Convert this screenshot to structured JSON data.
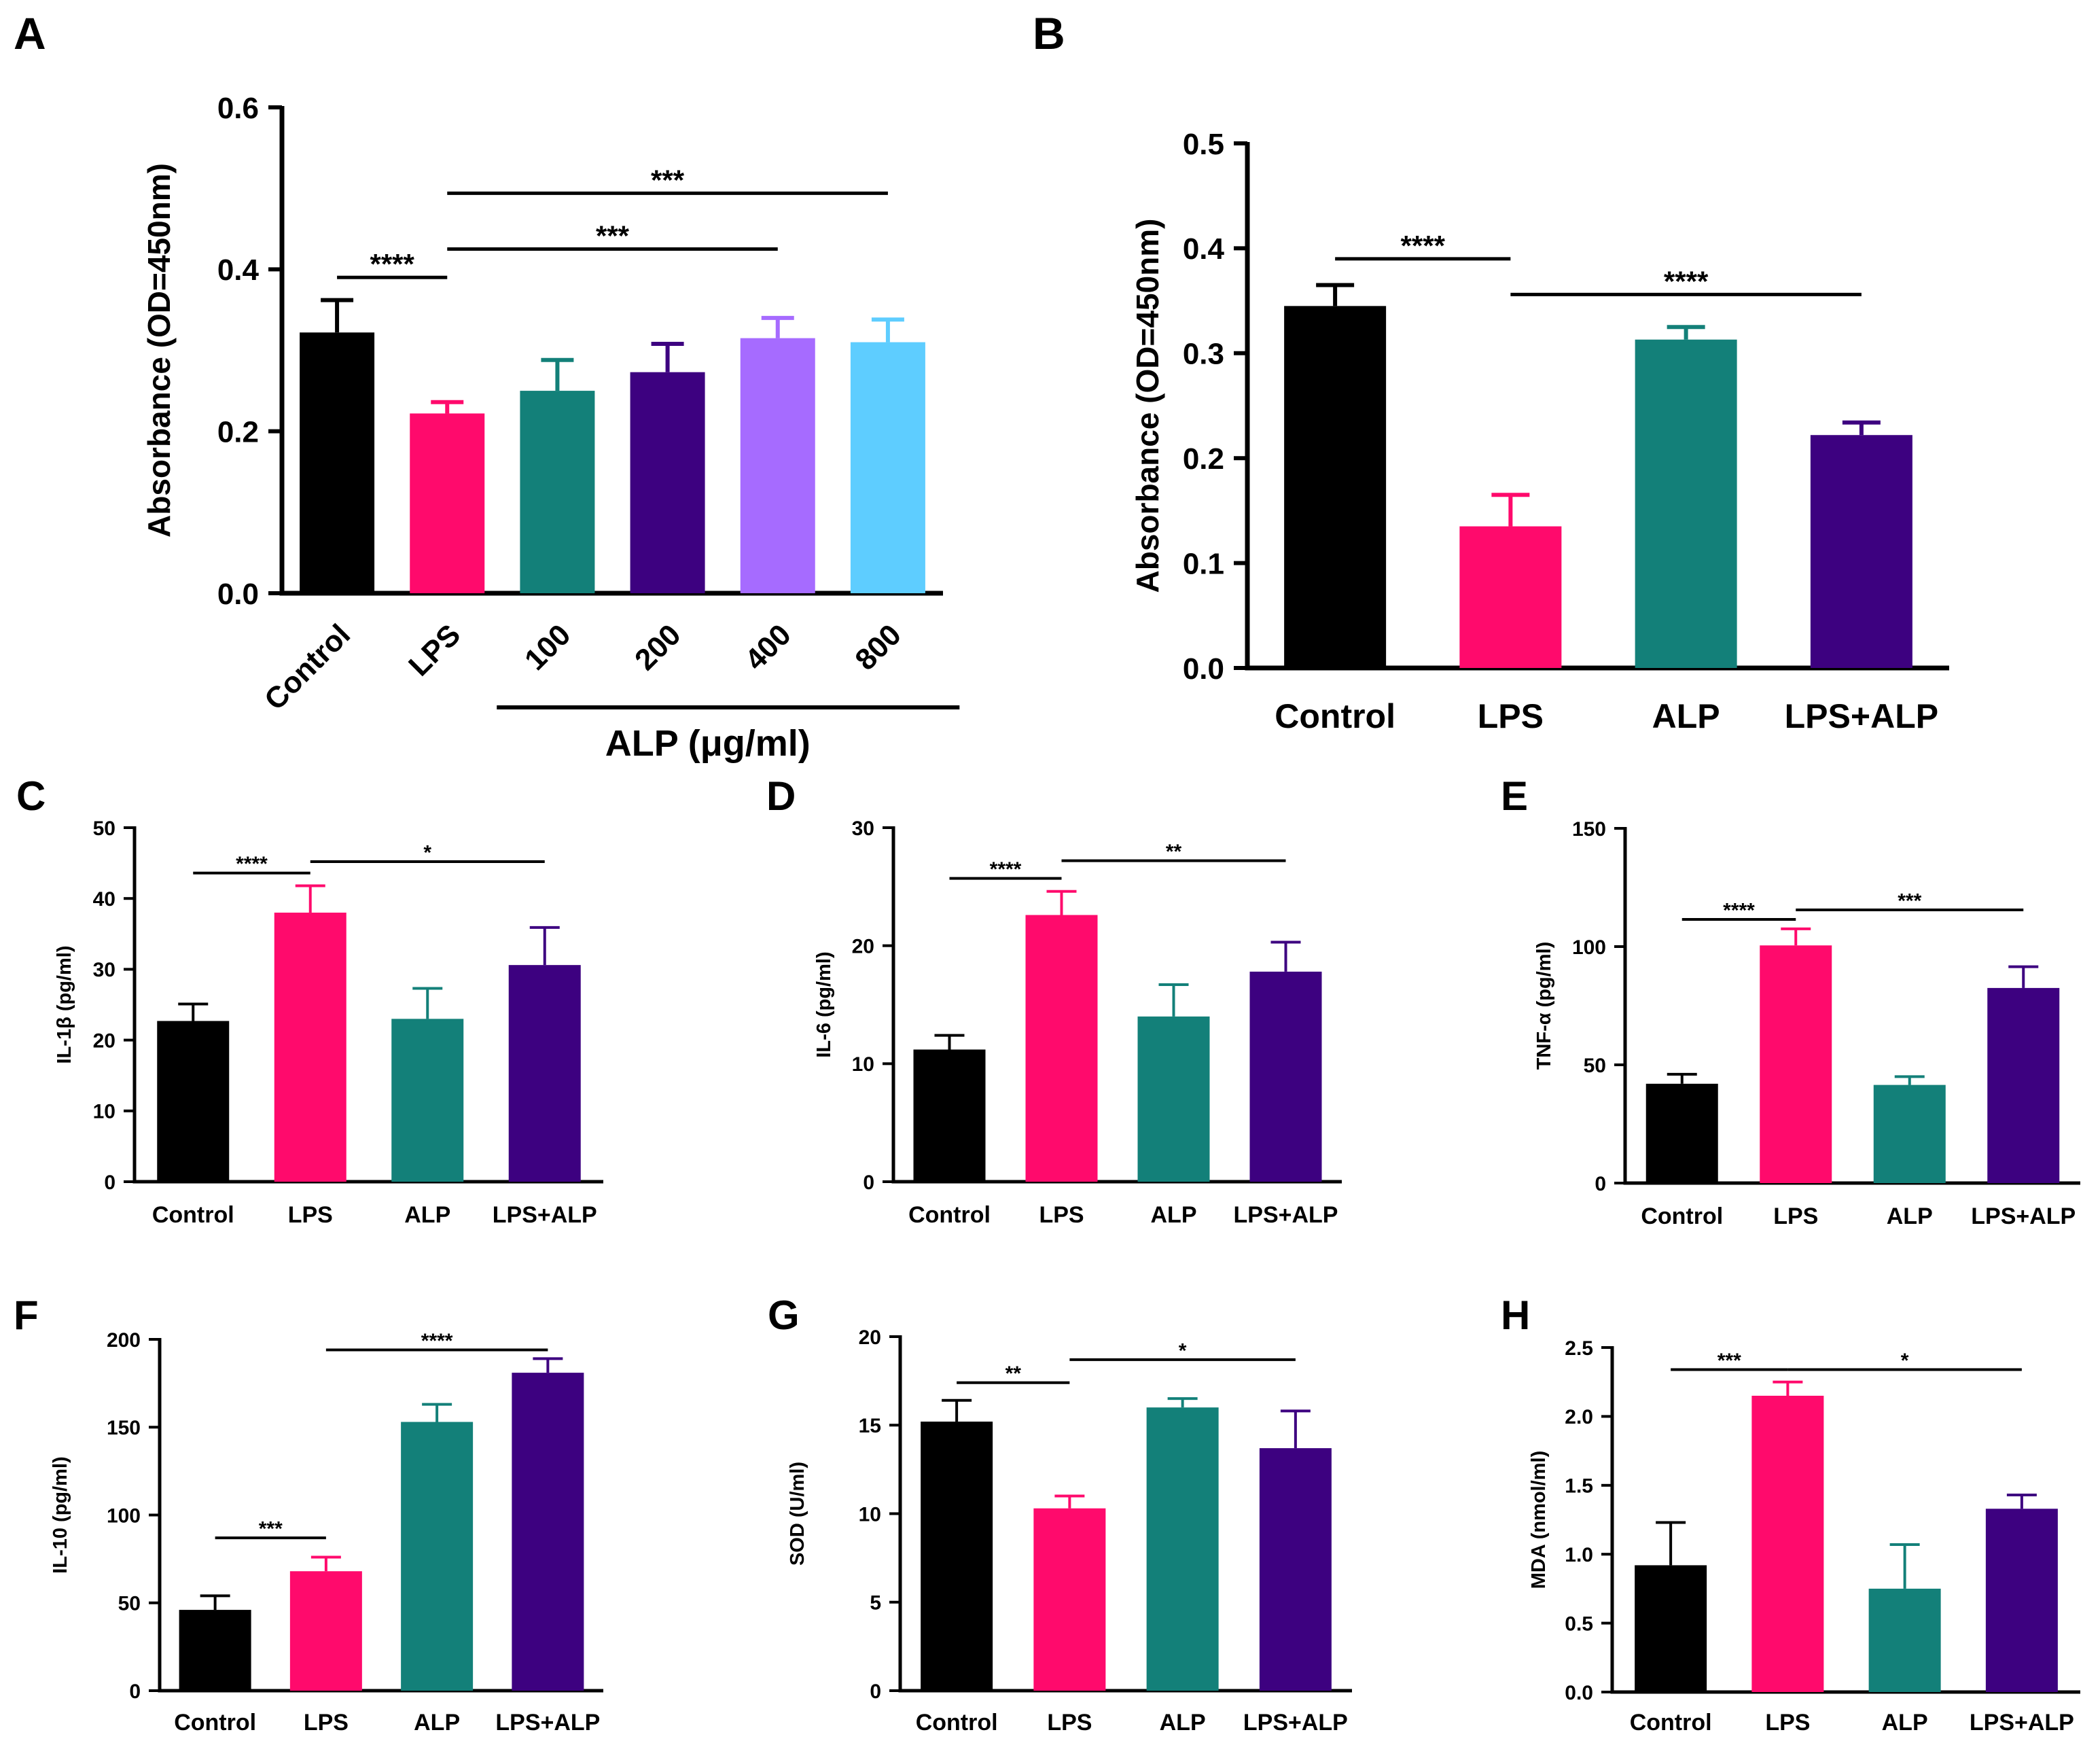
{
  "colors": {
    "black": "#000000",
    "pink": "#ff0a6c",
    "teal": "#138079",
    "indigo": "#3d0180",
    "violet": "#a66bff",
    "sky": "#5ecdff",
    "axis": "#000000"
  },
  "chart_data": [
    {
      "panel": "A",
      "type": "bar",
      "ylabel": "Absorbance (OD=450nm)",
      "ylim": [
        0,
        0.6
      ],
      "yticks": [
        "0.0",
        "0.2",
        "0.4",
        "0.6"
      ],
      "categories": [
        "Control",
        "LPS",
        "100",
        "200",
        "400",
        "800"
      ],
      "rotated_labels": true,
      "values": [
        0.322,
        0.222,
        0.25,
        0.273,
        0.315,
        0.31
      ],
      "errors": [
        0.04,
        0.014,
        0.038,
        0.035,
        0.025,
        0.028
      ],
      "colors": [
        "black",
        "pink",
        "teal",
        "indigo",
        "violet",
        "sky"
      ],
      "group": {
        "label": "ALP (μg/ml)",
        "from": 2,
        "to": 5
      },
      "sig": [
        {
          "from": 0,
          "to": 1,
          "y": 0.39,
          "text": "****"
        },
        {
          "from": 1,
          "to": 4,
          "y": 0.425,
          "text": "***"
        },
        {
          "from": 1,
          "to": 5,
          "y": 0.494,
          "text": "***"
        }
      ]
    },
    {
      "panel": "B",
      "type": "bar",
      "ylabel": "Absorbance (OD=450nm)",
      "ylim": [
        0,
        0.5
      ],
      "yticks": [
        "0.0",
        "0.1",
        "0.2",
        "0.3",
        "0.4",
        "0.5"
      ],
      "categories": [
        "Control",
        "LPS",
        "ALP",
        "LPS+ALP"
      ],
      "values": [
        0.345,
        0.135,
        0.313,
        0.222
      ],
      "errors": [
        0.02,
        0.03,
        0.012,
        0.012
      ],
      "colors": [
        "black",
        "pink",
        "teal",
        "indigo"
      ],
      "sig": [
        {
          "from": 0,
          "to": 1,
          "y": 0.39,
          "text": "****"
        },
        {
          "from": 1,
          "to": 3,
          "y": 0.356,
          "text": "****"
        }
      ]
    },
    {
      "panel": "C",
      "type": "bar",
      "ylabel": "IL-1β (pg/ml)",
      "ylim": [
        0,
        50
      ],
      "yticks": [
        "0",
        "10",
        "20",
        "30",
        "40",
        "50"
      ],
      "categories": [
        "Control",
        "LPS",
        "ALP",
        "LPS+ALP"
      ],
      "values": [
        22.7,
        38.0,
        23.0,
        30.6
      ],
      "errors": [
        2.4,
        3.8,
        4.3,
        5.3
      ],
      "colors": [
        "black",
        "pink",
        "teal",
        "indigo"
      ],
      "sig": [
        {
          "from": 0,
          "to": 1,
          "y": 43.6,
          "text": "****"
        },
        {
          "from": 1,
          "to": 3,
          "y": 45.2,
          "text": "*"
        }
      ]
    },
    {
      "panel": "D",
      "type": "bar",
      "ylabel": "IL-6 (pg/ml)",
      "ylim": [
        0,
        30
      ],
      "yticks": [
        "0",
        "10",
        "20",
        "30"
      ],
      "categories": [
        "Control",
        "LPS",
        "ALP",
        "LPS+ALP"
      ],
      "values": [
        11.2,
        22.6,
        14.0,
        17.8
      ],
      "errors": [
        1.2,
        2.0,
        2.7,
        2.5
      ],
      "colors": [
        "black",
        "pink",
        "teal",
        "indigo"
      ],
      "sig": [
        {
          "from": 0,
          "to": 1,
          "y": 25.7,
          "text": "****"
        },
        {
          "from": 1,
          "to": 3,
          "y": 27.2,
          "text": "**"
        }
      ]
    },
    {
      "panel": "E",
      "type": "bar",
      "ylabel": "TNF-α (pg/ml)",
      "ylim": [
        0,
        150
      ],
      "yticks": [
        "0",
        "50",
        "100",
        "150"
      ],
      "categories": [
        "Control",
        "LPS",
        "ALP",
        "LPS+ALP"
      ],
      "values": [
        42.0,
        100.5,
        41.5,
        82.5
      ],
      "errors": [
        4.0,
        7.0,
        3.5,
        9.0
      ],
      "colors": [
        "black",
        "pink",
        "teal",
        "indigo"
      ],
      "sig": [
        {
          "from": 0,
          "to": 1,
          "y": 111.5,
          "text": "****"
        },
        {
          "from": 1,
          "to": 3,
          "y": 115.5,
          "text": "***"
        }
      ]
    },
    {
      "panel": "F",
      "type": "bar",
      "ylabel": "IL-10 (pg/ml)",
      "ylim": [
        0,
        200
      ],
      "yticks": [
        "0",
        "50",
        "100",
        "150",
        "200"
      ],
      "categories": [
        "Control",
        "LPS",
        "ALP",
        "LPS+ALP"
      ],
      "values": [
        46.0,
        68.0,
        153.0,
        181.0
      ],
      "errors": [
        8.0,
        8.0,
        10.0,
        8.0
      ],
      "colors": [
        "black",
        "pink",
        "teal",
        "indigo"
      ],
      "sig": [
        {
          "from": 0,
          "to": 1,
          "y": 87.0,
          "text": "***"
        },
        {
          "from": 1,
          "to": 3,
          "y": 194.0,
          "text": "****"
        }
      ]
    },
    {
      "panel": "G",
      "type": "bar",
      "ylabel": "SOD (U/ml)",
      "ylim": [
        0,
        20
      ],
      "yticks": [
        "0",
        "5",
        "10",
        "15",
        "20"
      ],
      "categories": [
        "Control",
        "LPS",
        "ALP",
        "LPS+ALP"
      ],
      "values": [
        15.2,
        10.3,
        16.0,
        13.7
      ],
      "errors": [
        1.2,
        0.7,
        0.5,
        2.1
      ],
      "colors": [
        "black",
        "pink",
        "teal",
        "indigo"
      ],
      "sig": [
        {
          "from": 0,
          "to": 1,
          "y": 17.4,
          "text": "**"
        },
        {
          "from": 1,
          "to": 3,
          "y": 18.7,
          "text": "*"
        }
      ]
    },
    {
      "panel": "H",
      "type": "bar",
      "ylabel": "MDA (nmol/ml)",
      "ylim": [
        0,
        2.5
      ],
      "yticks": [
        "0.0",
        "0.5",
        "1.0",
        "1.5",
        "2.0",
        "2.5"
      ],
      "categories": [
        "Control",
        "LPS",
        "ALP",
        "LPS+ALP"
      ],
      "values": [
        0.92,
        2.15,
        0.75,
        1.33
      ],
      "errors": [
        0.31,
        0.1,
        0.32,
        0.1
      ],
      "colors": [
        "black",
        "pink",
        "teal",
        "indigo"
      ],
      "sig": [
        {
          "from": 0,
          "to": 1,
          "y": 2.34,
          "text": "***"
        },
        {
          "from": 1,
          "to": 3,
          "y": 2.34,
          "text": "*"
        }
      ]
    }
  ]
}
